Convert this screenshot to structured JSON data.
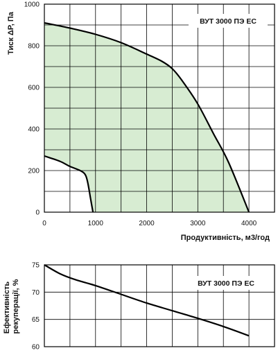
{
  "chart_data": [
    {
      "type": "area",
      "model_label": "ВУТ 3000 ПЭ ЕС",
      "xlabel": "Продуктивність, м3/год",
      "ylabel": "Тиск ΔP, Па",
      "xlim": [
        0,
        4500
      ],
      "ylim": [
        0,
        1000
      ],
      "x_ticks": [
        0,
        1000,
        2000,
        3000,
        4000
      ],
      "y_ticks": [
        0,
        200,
        400,
        600,
        800,
        1000
      ],
      "grid": true,
      "fill_color": "#d7ecd2",
      "series": [
        {
          "role": "upper-curve",
          "x": [
            0,
            500,
            1000,
            1500,
            2000,
            2300,
            2500,
            2700,
            3000,
            3300,
            3600,
            4000
          ],
          "y": [
            910,
            885,
            855,
            815,
            760,
            725,
            690,
            630,
            520,
            380,
            240,
            0
          ]
        },
        {
          "role": "lower-curve",
          "x": [
            0,
            300,
            500,
            700,
            800,
            850,
            900,
            950
          ],
          "y": [
            270,
            245,
            220,
            200,
            180,
            140,
            70,
            0
          ]
        }
      ]
    },
    {
      "type": "line",
      "model_label": "ВУТ 3000 ПЭ ЕС",
      "ylabel": "Ефективність рекуперації, %",
      "xlim": [
        0,
        4500
      ],
      "ylim": [
        60,
        75
      ],
      "y_ticks": [
        60,
        65,
        70,
        75
      ],
      "x_grid": [
        0,
        500,
        1000,
        1500,
        2000,
        2500,
        3000,
        3500,
        4000,
        4500
      ],
      "grid": true,
      "series": [
        {
          "role": "efficiency",
          "x": [
            0,
            300,
            600,
            1000,
            1500,
            2000,
            2500,
            3000,
            3500,
            4000
          ],
          "y": [
            75,
            73.4,
            72.3,
            71.2,
            69.6,
            68.0,
            66.6,
            65.2,
            63.7,
            62.0
          ]
        }
      ]
    }
  ]
}
